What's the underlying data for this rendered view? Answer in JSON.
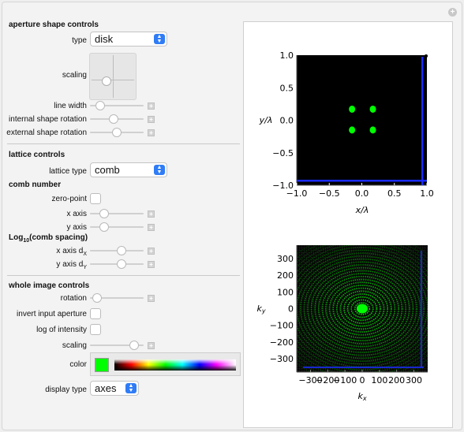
{
  "aperture": {
    "title": "aperture shape controls",
    "type_label": "type",
    "type_value": "disk",
    "scaling_label": "scaling",
    "line_width_label": "line width",
    "line_width": 0.12,
    "internal_rotation_label": "internal shape rotation",
    "internal_rotation": 0.42,
    "external_rotation_label": "external shape rotation",
    "external_rotation": 0.5
  },
  "lattice": {
    "title": "lattice controls",
    "type_label": "lattice type",
    "type_value": "comb",
    "comb_number_title": "comb number",
    "zero_point_label": "zero-point",
    "zero_point_checked": false,
    "x_axis_label": "x axis",
    "x_axis": 0.22,
    "y_axis_label": "y axis",
    "y_axis": 0.22,
    "log_title_prefix": "Log",
    "log_title_sub": "10",
    "log_title_suffix": "(comb spacing)",
    "dx_label": "x axis d",
    "dx_sub": "X",
    "dx": 0.6,
    "dy_label": "y axis d",
    "dy_sub": "Y",
    "dy": 0.6
  },
  "whole": {
    "title": "whole image controls",
    "rotation_label": "rotation",
    "rotation": 0.05,
    "invert_label": "invert input aperture",
    "invert_checked": false,
    "log_intensity_label": "log of intensity",
    "log_intensity_checked": false,
    "scaling_label": "scaling",
    "scaling": 0.9,
    "color_label": "color",
    "color_value": "#00ff00",
    "display_type_label": "display type",
    "display_type_value": "axes"
  },
  "icons": {
    "corner": "plus-circle-icon",
    "stepper": "chevron-updown-icon",
    "slider_more": "plus-square-icon"
  },
  "chart_data": [
    {
      "type": "scatter",
      "xlabel": "x/λ",
      "ylabel": "y/λ",
      "xlim": [
        -1.0,
        1.0
      ],
      "ylim": [
        -1.0,
        1.0
      ],
      "x_ticks": [
        "−1.0",
        "−0.5",
        "0.0",
        "0.5",
        "1.0"
      ],
      "y_ticks": [
        "−1.0",
        "−0.5",
        "0.0",
        "0.5",
        "1.0"
      ],
      "background": "#000000",
      "marker_color": "#00ff00",
      "points": [
        {
          "x": -0.15,
          "y": 0.17
        },
        {
          "x": 0.17,
          "y": 0.17
        },
        {
          "x": -0.15,
          "y": -0.15
        },
        {
          "x": 0.17,
          "y": -0.15
        }
      ],
      "edge_color": "#1a2cff",
      "edge_lines": [
        {
          "orientation": "vertical",
          "x": 0.93
        },
        {
          "orientation": "horizontal",
          "y": -0.93
        }
      ]
    },
    {
      "type": "heatmap",
      "xlabel": "kx",
      "ylabel": "ky",
      "xlim": [
        -380,
        380
      ],
      "ylim": [
        -380,
        380
      ],
      "x_ticks": [
        "−300",
        "−200",
        "−100",
        "0",
        "100",
        "200",
        "300"
      ],
      "y_ticks": [
        "300",
        "200",
        "100",
        "0",
        "−100",
        "−200",
        "−300"
      ],
      "colormap": "black-to-green",
      "pattern": "concentric rings centered at (0, 0)"
    }
  ]
}
